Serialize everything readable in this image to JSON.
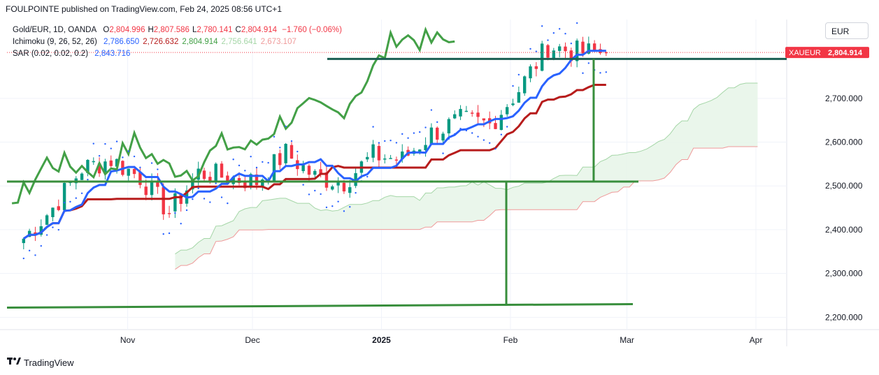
{
  "header": {
    "publisher_line": "FOULPOINTE published on TradingView.com, Feb 24, 2025 08:56 UTC+1"
  },
  "legend": {
    "symbol": "Gold/EUR, 1D, OANDA",
    "ohlc": [
      {
        "key": "O",
        "value": "2,804.996"
      },
      {
        "key": "H",
        "value": "2,807.586"
      },
      {
        "key": "L",
        "value": "2,780.141"
      },
      {
        "key": "C",
        "value": "2,804.914"
      }
    ],
    "change": "−1.760 (−0.06%)",
    "ichimoku": {
      "name": "Ichimoku (9, 26, 52, 26)",
      "values": [
        {
          "value": "2,786.650",
          "color": "#2962ff"
        },
        {
          "value": "2,726.632",
          "color": "#b71c1c"
        },
        {
          "value": "2,804.914",
          "color": "#43a047"
        },
        {
          "value": "2,756.641",
          "color": "#a5d6a7"
        },
        {
          "value": "2,673.107",
          "color": "#ef9a9a"
        }
      ]
    },
    "sar": {
      "name": "SAR (0.02, 0.02, 0.2)",
      "value": "2,843.716",
      "color": "#2962ff"
    }
  },
  "currency_button": "EUR",
  "price_label": {
    "symbol": "XAUEUR",
    "value": "2,804.914",
    "color": "#f23645"
  },
  "footer": {
    "brand": "TradingView"
  },
  "colors": {
    "up": "#089981",
    "down": "#f23645",
    "tenkan": "#2962ff",
    "kijun": "#b71c1c",
    "chikou": "#43a047",
    "senkou_a": "#a5d6a7",
    "senkou_b": "#ef9a9a",
    "drawing": "#388e3c",
    "hline": "#1b5e52"
  },
  "chart_data": {
    "type": "candlestick",
    "title": "Gold/EUR, 1D, OANDA",
    "y_axis": {
      "ticks": [
        2200,
        2300,
        2400,
        2500,
        2600,
        2700
      ],
      "tick_labels": [
        "2,200.000",
        "2,300.000",
        "2,400.000",
        "2,500.000",
        "2,600.000",
        "2,700.000"
      ],
      "range": [
        2175,
        2880
      ]
    },
    "x_axis": {
      "labels": [
        "Nov",
        "Dec",
        "2025",
        "Feb",
        "Mar",
        "Apr"
      ]
    },
    "candles_weekly_path": [
      {
        "date": "2024-10-07",
        "close": 2380
      },
      {
        "date": "2024-10-14",
        "close": 2450
      },
      {
        "date": "2024-10-21",
        "close": 2540
      },
      {
        "date": "2024-10-28",
        "close": 2560
      },
      {
        "date": "2024-11-04",
        "close": 2520
      },
      {
        "date": "2024-11-11",
        "close": 2440
      },
      {
        "date": "2024-11-18",
        "close": 2530
      },
      {
        "date": "2024-11-25",
        "close": 2520
      },
      {
        "date": "2024-12-02",
        "close": 2510
      },
      {
        "date": "2024-12-09",
        "close": 2575
      },
      {
        "date": "2024-12-16",
        "close": 2520
      },
      {
        "date": "2024-12-23",
        "close": 2510
      },
      {
        "date": "2024-12-30",
        "close": 2570
      },
      {
        "date": "2025-01-06",
        "close": 2560
      },
      {
        "date": "2025-01-13",
        "close": 2620
      },
      {
        "date": "2025-01-20",
        "close": 2650
      },
      {
        "date": "2025-01-27",
        "close": 2640
      },
      {
        "date": "2025-02-03",
        "close": 2720
      },
      {
        "date": "2025-02-10",
        "close": 2820
      },
      {
        "date": "2025-02-17",
        "close": 2805
      },
      {
        "date": "2025-02-24",
        "close": 2804.914
      }
    ],
    "last": {
      "open": 2804.996,
      "high": 2807.586,
      "low": 2780.141,
      "close": 2804.914,
      "change": -1.76,
      "change_pct": -0.06
    },
    "indicators": {
      "tenkan": 2786.65,
      "kijun": 2726.632,
      "chikou": 2804.914,
      "senkou_a": 2756.641,
      "senkou_b": 2673.107,
      "sar": 2843.716
    },
    "annotations": {
      "horizontal_levels": [
        2790,
        2510,
        2230
      ],
      "vertical_projections": [
        {
          "date": "2025-02-21",
          "from": 2790,
          "to": 2510
        },
        {
          "date": "2025-01-31",
          "from": 2510,
          "to": 2230
        }
      ]
    }
  }
}
